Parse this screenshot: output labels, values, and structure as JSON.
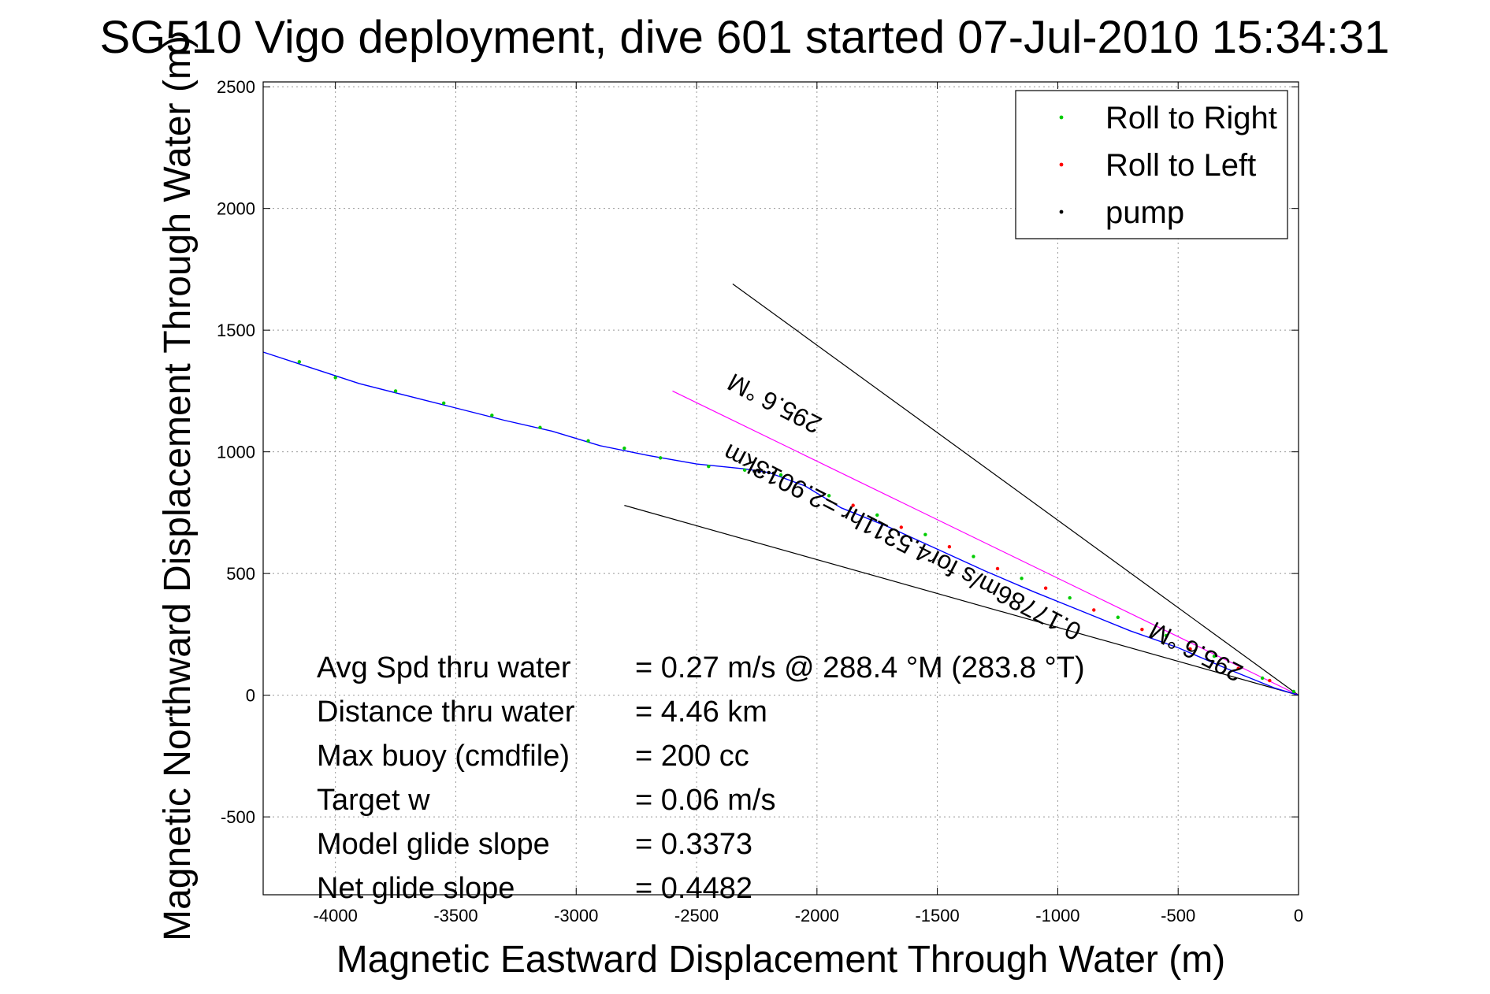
{
  "chart_data": {
    "type": "line",
    "title": "SG510 Vigo deployment, dive 601 started 07-Jul-2010 15:34:31",
    "xlabel": "Magnetic Eastward Displacement Through Water (m)",
    "ylabel": "Magnetic Northward Displacement Through Water (m)",
    "xlim": [
      -4300,
      0
    ],
    "ylim": [
      -820,
      2520
    ],
    "xticks": [
      -4000,
      -3500,
      -3000,
      -2500,
      -2000,
      -1500,
      -1000,
      -500,
      0
    ],
    "yticks": [
      -500,
      0,
      500,
      1000,
      1500,
      2000,
      2500
    ],
    "grid": true,
    "legend_position": "top-right",
    "legend": [
      {
        "name": "Roll to Right",
        "color": "#00cc00"
      },
      {
        "name": "Roll to Left",
        "color": "#ff0000"
      },
      {
        "name": "pump",
        "color": "#000000"
      }
    ],
    "track": {
      "color": "#0000ff",
      "x": [
        -4300,
        -4100,
        -3900,
        -3700,
        -3500,
        -3300,
        -3100,
        -2900,
        -2700,
        -2500,
        -2300,
        -2200,
        -2050,
        -1900,
        -1700,
        -1500,
        -1300,
        -1100,
        -900,
        -700,
        -500,
        -300,
        -100,
        0
      ],
      "y": [
        1410,
        1345,
        1280,
        1230,
        1180,
        1130,
        1085,
        1025,
        985,
        950,
        930,
        915,
        860,
        770,
        690,
        600,
        510,
        425,
        345,
        265,
        195,
        110,
        30,
        0
      ]
    },
    "roll_right": {
      "x": [
        -4150,
        -4000,
        -3750,
        -3550,
        -3350,
        -3150,
        -2950,
        -2800,
        -2650,
        -2450,
        -2300,
        -2150,
        -1950,
        -1750,
        -1550,
        -1350,
        -1150,
        -950,
        -750,
        -550,
        -350,
        -150,
        -20
      ],
      "y": [
        1370,
        1305,
        1250,
        1200,
        1150,
        1100,
        1045,
        1015,
        975,
        940,
        925,
        905,
        820,
        740,
        660,
        570,
        480,
        400,
        320,
        245,
        160,
        70,
        15
      ]
    },
    "roll_left": {
      "x": [
        -1850,
        -1650,
        -1450,
        -1250,
        -1050,
        -850,
        -650,
        -450,
        -250,
        -120
      ],
      "y": [
        780,
        690,
        610,
        520,
        440,
        350,
        270,
        190,
        110,
        60
      ]
    },
    "pump": {
      "x": [
        -2260,
        -2240,
        -2220,
        -2200,
        -2180
      ],
      "y": [
        920,
        918,
        916,
        915,
        912
      ]
    },
    "heading_line": {
      "color": "#ff00ff",
      "x": [
        -2600,
        0
      ],
      "y": [
        1250,
        0
      ]
    },
    "cone_lines": [
      {
        "color": "#000000",
        "x": [
          -2350,
          0
        ],
        "y": [
          1690,
          0
        ]
      },
      {
        "color": "#000000",
        "x": [
          -2800,
          0
        ],
        "y": [
          780,
          0
        ]
      }
    ],
    "annotations": [
      {
        "text": "295.6 °M",
        "x": -2160,
        "y": 1230,
        "angle_deg": 27.3
      },
      {
        "text": "0.17786m/s for4.5311hr =2.9013km",
        "x": -1630,
        "y": 660,
        "angle_deg": 27.3
      },
      {
        "text": "295.6 °M",
        "x": -410,
        "y": 210,
        "angle_deg": 27.3
      }
    ],
    "stats": [
      {
        "label": "Avg Spd thru water",
        "value": "=  0.27 m/s @ 288.4 °M (283.8 °T)"
      },
      {
        "label": "Distance thru water",
        "value": "=  4.46 km"
      },
      {
        "label": "Max buoy (cmdfile)",
        "value": "= 200 cc"
      },
      {
        "label": "Target w",
        "value": "= 0.06 m/s"
      },
      {
        "label": "Model glide slope",
        "value": "= 0.3373"
      },
      {
        "label": "Net glide slope",
        "value": "= 0.4482"
      }
    ]
  }
}
